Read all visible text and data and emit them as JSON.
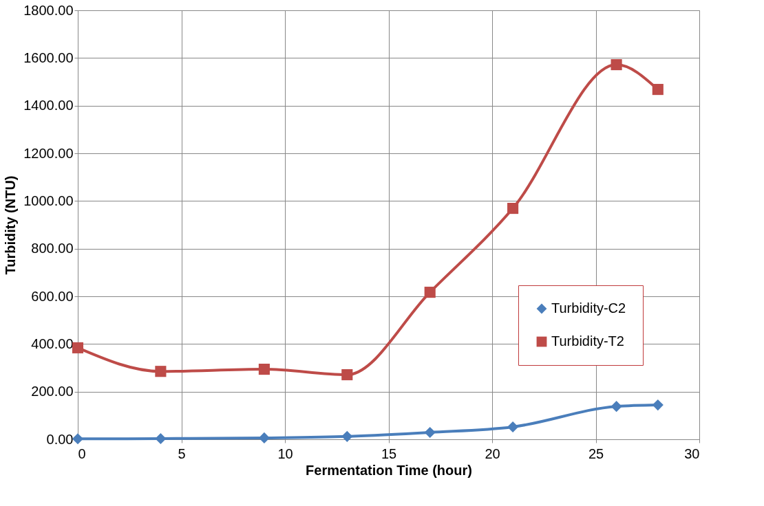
{
  "chart_data": {
    "type": "line",
    "xlabel": "Fermentation Time (hour)",
    "ylabel": "Turbidity (NTU)",
    "xlim": [
      0,
      30
    ],
    "xticks": [
      0,
      5,
      10,
      15,
      20,
      25,
      30
    ],
    "ylim": [
      0,
      1800
    ],
    "yticks": [
      {
        "value": 0,
        "label": "0.00"
      },
      {
        "value": 200,
        "label": "200.00"
      },
      {
        "value": 400,
        "label": "400.00"
      },
      {
        "value": 600,
        "label": "600.00"
      },
      {
        "value": 800,
        "label": "800.00"
      },
      {
        "value": 1000,
        "label": "1000.00"
      },
      {
        "value": 1200,
        "label": "1200.00"
      },
      {
        "value": 1400,
        "label": "1400.00"
      },
      {
        "value": 1600,
        "label": "1600.00"
      },
      {
        "value": 1800,
        "label": "1800.00"
      }
    ],
    "x": [
      0,
      4,
      9,
      13,
      17,
      21,
      26,
      28
    ],
    "grid": true,
    "legend": "right",
    "line_style": "solid",
    "series": [
      {
        "name": "Turbidity-C2",
        "color": "#4a7ebb",
        "marker": "diamond",
        "values": [
          2,
          3,
          6,
          12,
          29,
          52,
          138,
          144
        ]
      },
      {
        "name": "Turbidity-T2",
        "color": "#be4b48",
        "marker": "square",
        "values": [
          384,
          285,
          294,
          271,
          617,
          969,
          1572,
          1468
        ]
      }
    ]
  }
}
